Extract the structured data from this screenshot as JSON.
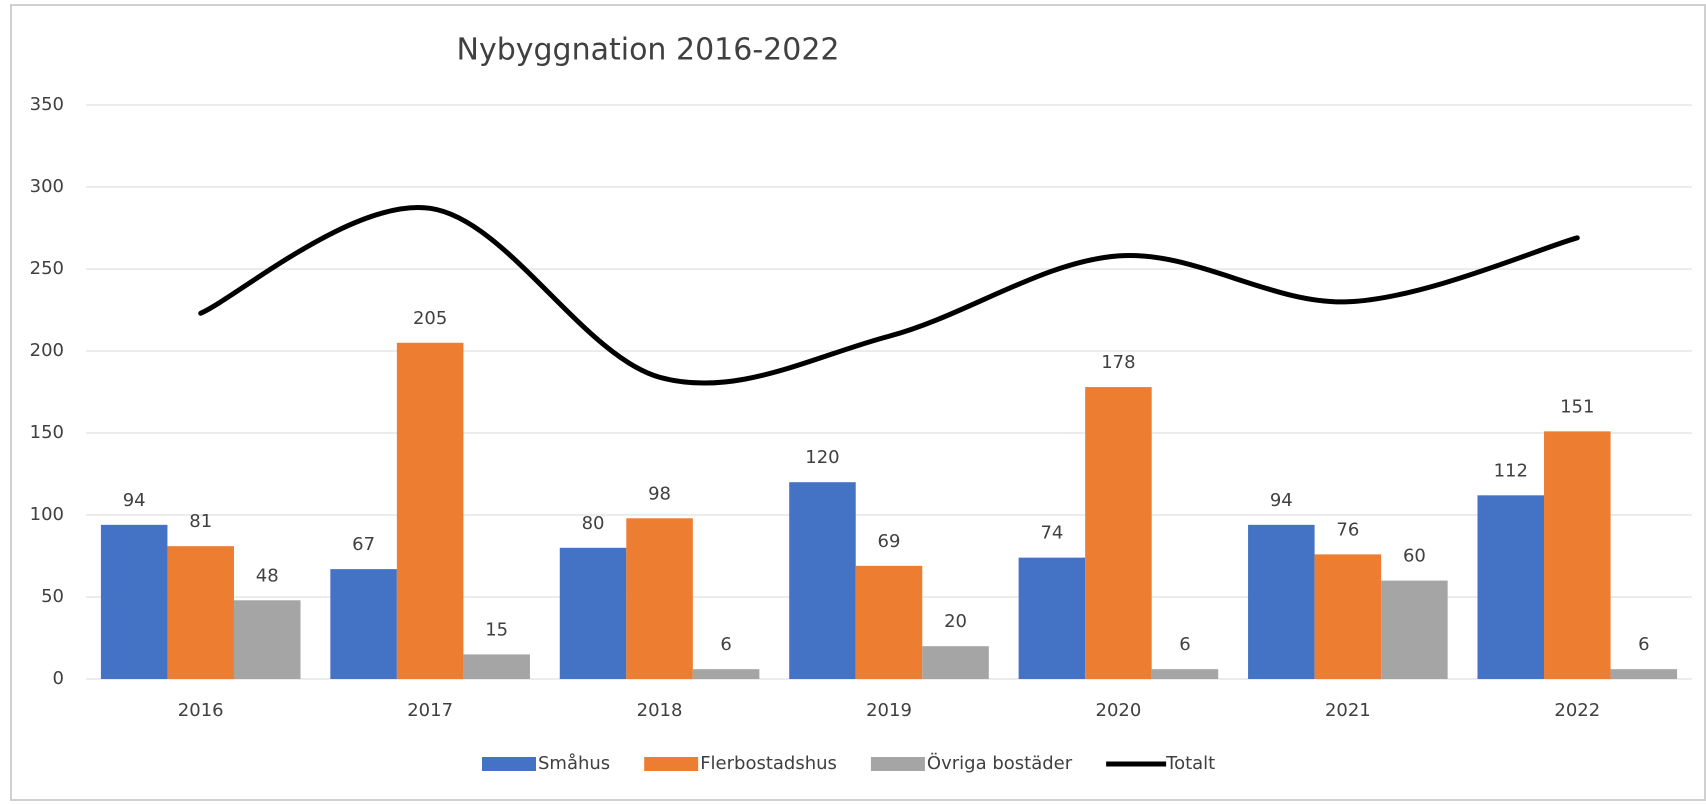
{
  "chart_data": {
    "type": "bar-line",
    "title": "Nybyggnation 2016-2022",
    "categories": [
      "2016",
      "2017",
      "2018",
      "2019",
      "2020",
      "2021",
      "2022"
    ],
    "series": [
      {
        "name": "Småhus",
        "color": "#4472c4",
        "type": "bar",
        "values": [
          94,
          67,
          80,
          120,
          74,
          94,
          112
        ]
      },
      {
        "name": "Flerbostadshus",
        "color": "#ed7d31",
        "type": "bar",
        "values": [
          81,
          205,
          98,
          69,
          178,
          76,
          151
        ]
      },
      {
        "name": "Övriga bostäder",
        "color": "#a5a5a5",
        "type": "bar",
        "values": [
          48,
          15,
          6,
          20,
          6,
          60,
          6
        ]
      },
      {
        "name": "Totalt",
        "color": "#000000",
        "type": "line",
        "smooth": true,
        "values": [
          223,
          287,
          184,
          209,
          258,
          230,
          269
        ]
      }
    ],
    "data_labels": [
      true,
      true,
      true,
      false
    ],
    "ylim": [
      0,
      350
    ],
    "yticks": [
      0,
      50,
      100,
      150,
      200,
      250,
      300,
      350
    ],
    "grid": true,
    "legend": "bottom"
  }
}
